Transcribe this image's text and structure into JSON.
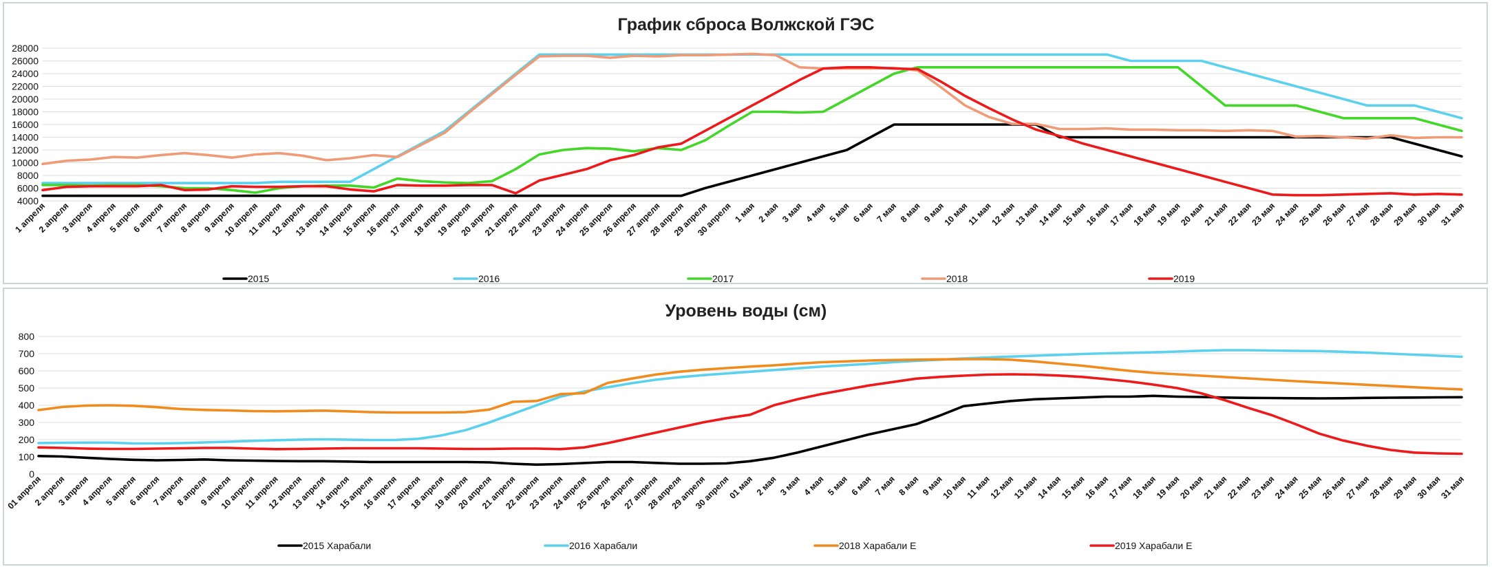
{
  "chart_data": [
    {
      "id": "release",
      "type": "line",
      "title": "График сброса  Волжской  ГЭС",
      "ylim": [
        4000,
        28000
      ],
      "yticks": [
        4000,
        6000,
        8000,
        10000,
        12000,
        14000,
        16000,
        18000,
        20000,
        22000,
        24000,
        26000,
        28000
      ],
      "categories": [
        "1 апреля",
        "2 апреля",
        "3 апреля",
        "4 апреля",
        "5 апреля",
        "6 апреля",
        "7 апреля",
        "8 апреля",
        "9 апреля",
        "10 апреля",
        "11 апреля",
        "12 апреля",
        "13 апреля",
        "14 апреля",
        "15 апреля",
        "16 апреля",
        "17 апреля",
        "18 апреля",
        "19 апреля",
        "20 апреля",
        "21 апреля",
        "22 апреля",
        "23 апреля",
        "24 апреля",
        "25 апреля",
        "26 апреля",
        "27 апреля",
        "28 апреля",
        "29 апреля",
        "30 апреля",
        "1 мая",
        "2 мая",
        "3 мая",
        "4 мая",
        "5 мая",
        "6 мая",
        "7 мая",
        "8 мая",
        "9 мая",
        "10 мая",
        "11 мая",
        "12 мая",
        "13 мая",
        "14 мая",
        "15 мая",
        "16 мая",
        "17 мая",
        "18 мая",
        "19 мая",
        "20 мая",
        "21 мая",
        "22 мая",
        "23 мая",
        "24 мая",
        "25 мая",
        "26 мая",
        "27 мая",
        "28 мая",
        "29 мая",
        "30 мая",
        "31 мая"
      ],
      "series": [
        {
          "name": "2015",
          "color": "#000000",
          "values": [
            4800,
            4800,
            4800,
            4800,
            4800,
            4800,
            4800,
            4800,
            4800,
            4800,
            4800,
            4800,
            4800,
            4800,
            4800,
            4800,
            4800,
            4800,
            4800,
            4800,
            4800,
            4800,
            4800,
            4800,
            4800,
            4800,
            4800,
            4800,
            6000,
            7000,
            8000,
            9000,
            10000,
            11000,
            12000,
            14000,
            16000,
            16000,
            16000,
            16000,
            16000,
            16000,
            16000,
            14000,
            14000,
            14000,
            14000,
            14000,
            14000,
            14000,
            14000,
            14000,
            14000,
            14000,
            14000,
            14000,
            14000,
            14000,
            13000,
            12000,
            11000
          ]
        },
        {
          "name": "2016",
          "color": "#5bd1ee",
          "values": [
            6800,
            6800,
            6800,
            6800,
            6800,
            6800,
            6800,
            6800,
            6800,
            6800,
            7000,
            7000,
            7000,
            7000,
            9000,
            11000,
            13000,
            15000,
            18000,
            21000,
            24000,
            27000,
            27000,
            27000,
            27000,
            27000,
            27000,
            27000,
            27000,
            27000,
            27000,
            27000,
            27000,
            27000,
            27000,
            27000,
            27000,
            27000,
            27000,
            27000,
            27000,
            27000,
            27000,
            27000,
            27000,
            27000,
            26000,
            26000,
            26000,
            26000,
            25000,
            24000,
            23000,
            22000,
            21000,
            20000,
            19000,
            19000,
            19000,
            18000,
            17000
          ]
        },
        {
          "name": "2017",
          "color": "#44d628",
          "values": [
            6500,
            6500,
            6400,
            6500,
            6500,
            6300,
            6000,
            6000,
            5700,
            5300,
            6000,
            6300,
            6400,
            6400,
            6100,
            7500,
            7100,
            6900,
            6800,
            7100,
            9000,
            11300,
            12000,
            12300,
            12200,
            11800,
            12300,
            12000,
            13500,
            15800,
            18000,
            18000,
            17900,
            18000,
            20000,
            22000,
            24000,
            25000,
            25000,
            25000,
            25000,
            25000,
            25000,
            25000,
            25000,
            25000,
            25000,
            25000,
            25000,
            22000,
            19000,
            19000,
            19000,
            19000,
            18000,
            17000,
            17000,
            17000,
            17000,
            16000,
            15000
          ]
        },
        {
          "name": "2018",
          "color": "#ef9b78",
          "values": [
            9800,
            10300,
            10500,
            10900,
            10800,
            11200,
            11500,
            11200,
            10800,
            11300,
            11500,
            11100,
            10400,
            10700,
            11200,
            10900,
            12800,
            14700,
            17800,
            20800,
            23800,
            26700,
            26800,
            26800,
            26500,
            26800,
            26700,
            26900,
            26900,
            27000,
            27100,
            26900,
            25000,
            24800,
            24800,
            24800,
            24900,
            24500,
            21800,
            19000,
            17200,
            16100,
            16100,
            15300,
            15300,
            15400,
            15200,
            15200,
            15100,
            15100,
            15000,
            15100,
            15000,
            14100,
            14200,
            14000,
            13800,
            14300,
            13900,
            14000,
            14000
          ]
        },
        {
          "name": "2019",
          "color": "#ec1a1a",
          "values": [
            5700,
            6200,
            6300,
            6300,
            6300,
            6500,
            5700,
            5800,
            6300,
            6200,
            6200,
            6300,
            6300,
            5800,
            5500,
            6500,
            6400,
            6400,
            6500,
            6500,
            5200,
            7200,
            8100,
            9000,
            10400,
            11200,
            12400,
            13000,
            15000,
            17000,
            19000,
            21000,
            23000,
            24800,
            25000,
            25000,
            24800,
            24700,
            22700,
            20500,
            18600,
            16800,
            15200,
            14200,
            13000,
            12000,
            11000,
            10000,
            9000,
            8000,
            7000,
            6000,
            5000,
            4900,
            4900,
            5000,
            5100,
            5200,
            5000,
            5100,
            5000
          ]
        }
      ]
    },
    {
      "id": "level",
      "type": "line",
      "title": "Уровень воды (см)",
      "ylim": [
        0,
        800
      ],
      "yticks": [
        0,
        100,
        200,
        300,
        400,
        500,
        600,
        700,
        800
      ],
      "categories": [
        "01 апреля",
        "2 апреля",
        "3 апреля",
        "4 апреля",
        "5 апреля",
        "6 апреля",
        "7 апреля",
        "8 апреля",
        "9 апреля",
        "10 апреля",
        "11 апреля",
        "12 апреля",
        "13 апреля",
        "14 апреля",
        "15 апреля",
        "16 апреля",
        "17 апреля",
        "18 апреля",
        "19 апреля",
        "20 апреля",
        "21 апреля",
        "22 апреля",
        "23 апреля",
        "24 апреля",
        "25 апреля",
        "26 апреля",
        "27 апреля",
        "28 апреля",
        "29 апреля",
        "30 апреля",
        "01 мая",
        "2 мая",
        "3 мая",
        "4 мая",
        "5 мая",
        "6 мая",
        "7 мая",
        "8 мая",
        "9 мая",
        "10 мая",
        "11 мая",
        "12 мая",
        "13 мая",
        "14 мая",
        "15 мая",
        "16 мая",
        "17 мая",
        "18 мая",
        "19 мая",
        "20 мая",
        "21 мая",
        "22 мая",
        "23 мая",
        "24 мая",
        "25 мая",
        "26 мая",
        "27 мая",
        "28 мая",
        "29 мая",
        "30 мая",
        "31 мая"
      ],
      "series": [
        {
          "name": "2015 Харабали",
          "color": "#000000",
          "values": [
            105,
            102,
            95,
            88,
            83,
            80,
            82,
            85,
            80,
            78,
            76,
            75,
            75,
            73,
            70,
            70,
            70,
            70,
            70,
            68,
            60,
            55,
            58,
            64,
            70,
            70,
            65,
            60,
            60,
            62,
            75,
            95,
            125,
            160,
            195,
            230,
            260,
            290,
            340,
            395,
            410,
            425,
            435,
            440,
            445,
            450,
            450,
            455,
            450,
            448,
            445,
            443,
            442,
            441,
            440,
            441,
            443,
            444,
            445,
            446,
            447
          ]
        },
        {
          "name": "2016 Харабали",
          "color": "#5bd1ee",
          "values": [
            180,
            182,
            183,
            183,
            178,
            178,
            180,
            184,
            188,
            193,
            197,
            200,
            202,
            200,
            198,
            198,
            205,
            225,
            255,
            300,
            350,
            400,
            450,
            480,
            505,
            528,
            548,
            563,
            575,
            585,
            595,
            605,
            615,
            625,
            633,
            641,
            650,
            658,
            665,
            672,
            678,
            683,
            688,
            693,
            698,
            702,
            705,
            708,
            712,
            717,
            720,
            720,
            718,
            716,
            715,
            711,
            706,
            700,
            694,
            688,
            682
          ]
        },
        {
          "name": "2018 Харабали Е",
          "color": "#f08c1e",
          "values": [
            372,
            390,
            398,
            400,
            397,
            389,
            378,
            373,
            370,
            366,
            365,
            367,
            369,
            365,
            360,
            358,
            358,
            358,
            360,
            375,
            420,
            425,
            465,
            470,
            530,
            555,
            578,
            595,
            607,
            616,
            625,
            632,
            642,
            650,
            655,
            660,
            663,
            665,
            667,
            668,
            668,
            665,
            655,
            642,
            630,
            615,
            600,
            588,
            580,
            572,
            564,
            556,
            548,
            540,
            533,
            526,
            519,
            512,
            505,
            498,
            492
          ]
        },
        {
          "name": "2019 Харабали Е",
          "color": "#ec1a1a",
          "values": [
            155,
            152,
            148,
            146,
            146,
            148,
            150,
            152,
            152,
            148,
            145,
            146,
            148,
            150,
            150,
            150,
            150,
            148,
            146,
            146,
            148,
            148,
            145,
            155,
            180,
            210,
            240,
            270,
            300,
            325,
            345,
            400,
            435,
            465,
            490,
            515,
            535,
            555,
            565,
            572,
            578,
            580,
            578,
            573,
            565,
            552,
            538,
            520,
            500,
            470,
            430,
            385,
            342,
            290,
            235,
            195,
            165,
            140,
            125,
            120,
            118
          ]
        }
      ]
    }
  ]
}
